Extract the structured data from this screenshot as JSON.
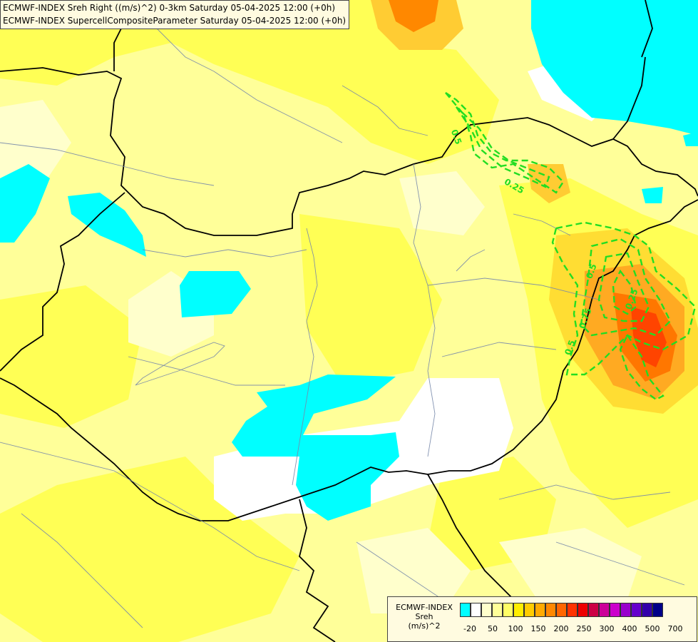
{
  "title": {
    "line1": "ECMWF-INDEX Sreh Right ((m/s)^2) 0-3km Saturday 05-04-2025 12:00 (+0h)",
    "line2": "ECMWF-INDEX SupercellCompositeParameter Saturday 05-04-2025 12:00 (+0h)"
  },
  "contour_labels": [
    "0.5",
    "0.25",
    "0.5",
    "0.75",
    "0.5",
    "0.25"
  ],
  "legend": {
    "label_line1": "ECMWF-INDEX",
    "label_line2": "Sreh",
    "label_line3": "(m/s)^2",
    "colors": [
      "#00ffff",
      "#ffffff",
      "#ffffcc",
      "#ffff99",
      "#ffff66",
      "#ffee00",
      "#ffcc00",
      "#ffaa00",
      "#ff8800",
      "#ff6600",
      "#ff3300",
      "#ee0000",
      "#cc0044",
      "#cc0099",
      "#cc00cc",
      "#9900cc",
      "#6600cc",
      "#3300aa",
      "#000088"
    ],
    "ticks": [
      "-20",
      "50",
      "100",
      "150",
      "200",
      "250",
      "300",
      "400",
      "500",
      "700"
    ]
  },
  "colors": {
    "cyan": "#00ffff",
    "white": "#ffffff",
    "pale_yellow": "#ffffaa",
    "yellow": "#ffff66",
    "gold": "#ffee44",
    "orange": "#ffaa22",
    "red_orange": "#ff5a00",
    "green_contour": "#22dd22"
  }
}
